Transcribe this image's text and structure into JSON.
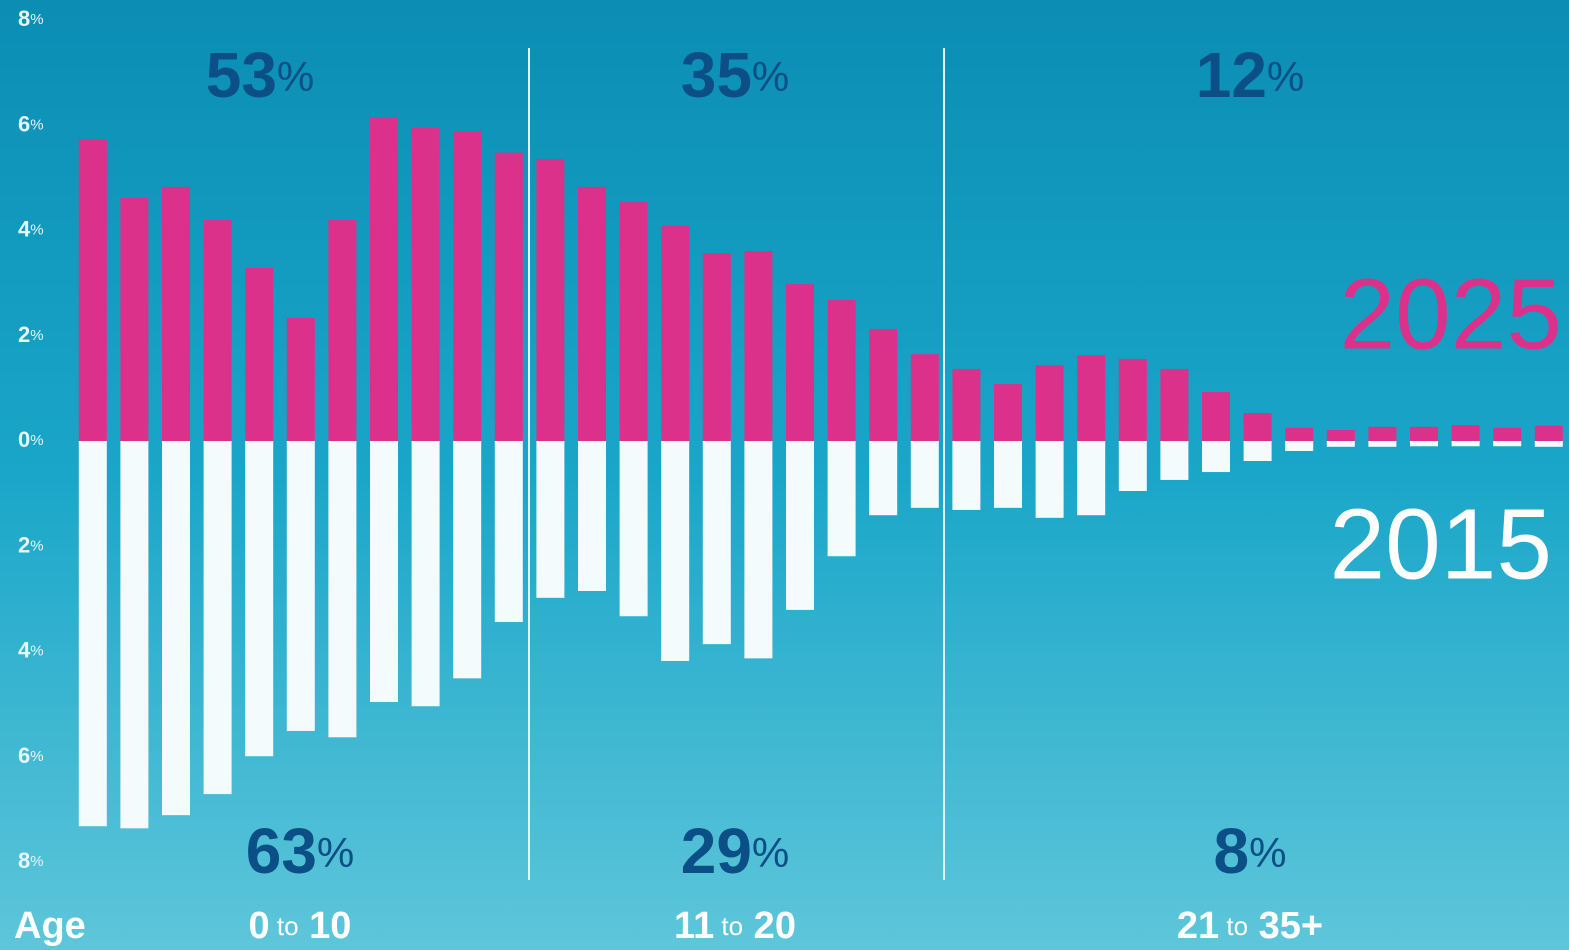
{
  "chart_data": {
    "type": "diverging-bar",
    "categories": [
      null,
      null,
      null,
      null,
      null,
      null,
      null,
      null,
      null,
      null,
      null,
      null,
      null,
      null,
      null,
      null,
      null,
      null,
      null,
      null,
      null,
      null,
      null,
      null,
      null,
      null,
      null,
      null,
      null,
      null,
      null,
      null,
      null,
      null,
      null,
      null
    ],
    "series": [
      {
        "name": "2025",
        "color": "#dc318b",
        "values": [
          5.74,
          4.62,
          4.83,
          4.2,
          3.29,
          2.34,
          4.2,
          6.14,
          5.95,
          5.89,
          5.48,
          5.36,
          4.83,
          4.54,
          4.09,
          3.57,
          3.61,
          2.98,
          2.68,
          2.13,
          1.65,
          1.37,
          1.08,
          1.44,
          1.63,
          1.56,
          1.37,
          0.93,
          0.53,
          0.25,
          0.21,
          0.27,
          0.27,
          0.3,
          0.25,
          0.29
        ]
      },
      {
        "name": "2015",
        "color": "#f4fbfd",
        "values": [
          -7.32,
          -7.36,
          -7.11,
          -6.71,
          -5.99,
          -5.51,
          -5.63,
          -4.96,
          -5.04,
          -4.51,
          -3.44,
          -2.98,
          -2.85,
          -3.33,
          -4.18,
          -3.86,
          -4.13,
          -3.21,
          -2.19,
          -1.41,
          -1.27,
          -1.31,
          -1.27,
          -1.46,
          -1.41,
          -0.95,
          -0.74,
          -0.59,
          -0.38,
          -0.19,
          -0.11,
          -0.11,
          -0.1,
          -0.1,
          -0.1,
          -0.11
        ]
      }
    ],
    "ylim": [
      -8,
      8
    ],
    "yticks": [
      {
        "value": 8,
        "label": "8%"
      },
      {
        "value": 6,
        "label": "6%"
      },
      {
        "value": 4,
        "label": "4%"
      },
      {
        "value": 2,
        "label": "2%"
      },
      {
        "value": 0,
        "label": "0%"
      },
      {
        "value": -2,
        "label": "2%"
      },
      {
        "value": -4,
        "label": "4%"
      },
      {
        "value": -6,
        "label": "6%"
      },
      {
        "value": -8,
        "label": "8%"
      }
    ],
    "x_label": "Age",
    "groups": [
      {
        "label": "0 to 10",
        "share_2025": "53%",
        "share_2015": "63%"
      },
      {
        "label": "11 to 20",
        "share_2025": "35%",
        "share_2015": "29%"
      },
      {
        "label": "21 to 35+",
        "share_2025": "12%",
        "share_2015": "8%"
      }
    ]
  }
}
